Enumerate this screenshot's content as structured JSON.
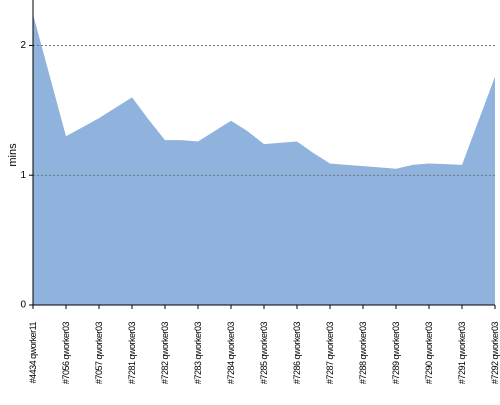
{
  "chart_data": {
    "type": "area",
    "y_label": "mins",
    "categories": [
      "#4434 qworker11",
      null,
      "#7056 qworker03",
      null,
      "#7057 qworker03",
      null,
      "#7281 qworker03",
      null,
      "#7282 qworker03",
      null,
      "#7283 qworker03",
      null,
      "#7284 qworker03",
      null,
      "#7285 qworker03",
      null,
      "#7286 qworker03",
      null,
      "#7287 qworker03",
      null,
      "#7288 qworker03",
      null,
      "#7289 qworker03",
      null,
      "#7290 qworker03",
      null,
      "#7291 qworker03",
      null,
      "#7292 qworker03"
    ],
    "values": [
      2.24,
      1.77,
      1.3,
      1.37,
      1.44,
      1.52,
      1.6,
      1.43,
      1.27,
      1.27,
      1.26,
      1.34,
      1.42,
      1.34,
      1.24,
      1.25,
      1.26,
      1.17,
      1.09,
      1.08,
      1.07,
      1.06,
      1.05,
      1.08,
      1.09,
      1.085,
      1.08,
      1.42,
      1.76
    ],
    "color": "#8fb3dc",
    "ylim": [
      0,
      2.35
    ],
    "yticks": [
      0,
      1,
      2
    ],
    "grid": true
  }
}
